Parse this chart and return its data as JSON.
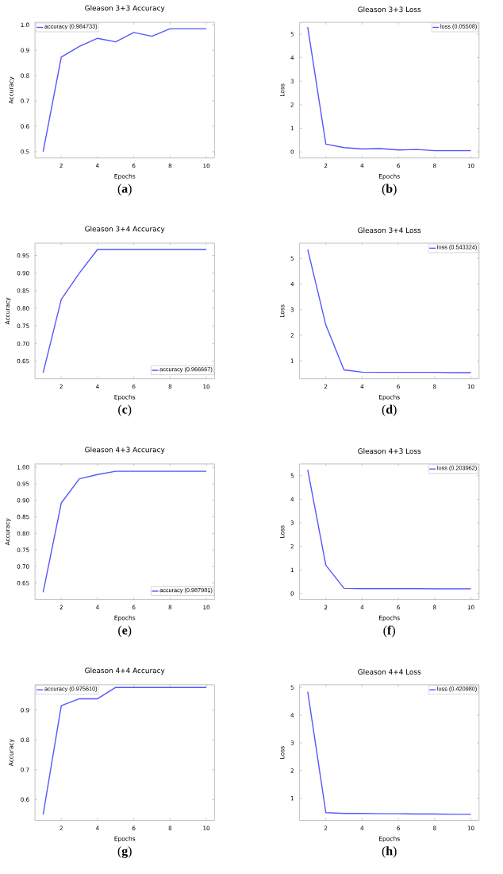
{
  "chart_data": [
    {
      "type": "line",
      "title": "Gleason 3+3 Accuracy",
      "xlabel": "Epochs",
      "ylabel": "Accuracy",
      "annotations": [
        "(**a**)"
      ],
      "x": [
        1,
        2,
        3,
        4,
        5,
        6,
        7,
        8,
        9,
        10
      ],
      "xlim": [
        0.55,
        10.45
      ],
      "xticks": [
        2,
        4,
        6,
        8,
        10
      ],
      "ylim": [
        0.475,
        1.01
      ],
      "yticks": [
        0.5,
        0.6,
        0.7,
        0.8,
        0.9,
        {
          "value": 1,
          "label": "1.0"
        }
      ],
      "legend": "top left",
      "line_style": "solid",
      "series": [
        {
          "name": "accuracy (0.984733)",
          "color": "#5555ff",
          "values": [
            0.5,
            0.873,
            0.915,
            0.947,
            0.933,
            0.97,
            0.955,
            0.985,
            0.985,
            0.985
          ]
        }
      ]
    },
    {
      "type": "line",
      "title": "Gleason 3+3 Loss",
      "xlabel": "Epochs",
      "ylabel": "Loss",
      "annotations": [
        "(**b**)"
      ],
      "x": [
        1,
        2,
        3,
        4,
        5,
        6,
        7,
        8,
        9,
        10
      ],
      "xlim": [
        0.55,
        10.45
      ],
      "xticks": [
        2,
        4,
        6,
        8,
        10
      ],
      "ylim": [
        -0.26,
        5.5
      ],
      "yticks": [
        0,
        1,
        2,
        3,
        4,
        5
      ],
      "legend": "top right",
      "line_style": "solid",
      "series": [
        {
          "name": "loss (0.05508)",
          "color": "#5555ff",
          "values": [
            5.3,
            0.33,
            0.18,
            0.12,
            0.14,
            0.08,
            0.1,
            0.05,
            0.05,
            0.05
          ]
        }
      ]
    },
    {
      "type": "line",
      "title": "Gleason 3+4 Accuracy",
      "xlabel": "Epochs",
      "ylabel": "Accuracy",
      "annotations": [
        "(**c**)"
      ],
      "x": [
        1,
        2,
        3,
        4,
        5,
        6,
        7,
        8,
        9,
        10
      ],
      "xlim": [
        0.55,
        10.45
      ],
      "xticks": [
        2,
        4,
        6,
        8,
        10
      ],
      "ylim": [
        0.6,
        0.985
      ],
      "yticks": [
        {
          "value": 0.65,
          "label": "0.65"
        },
        {
          "value": 0.7,
          "label": "0.70"
        },
        {
          "value": 0.75,
          "label": "0.75"
        },
        {
          "value": 0.8,
          "label": "0.80"
        },
        {
          "value": 0.85,
          "label": "0.85"
        },
        {
          "value": 0.9,
          "label": "0.90"
        },
        {
          "value": 0.95,
          "label": "0.95"
        }
      ],
      "legend": "bottom right",
      "line_style": "solid",
      "series": [
        {
          "name": "accuracy (0.966667)",
          "color": "#5555ff",
          "values": [
            0.617,
            0.825,
            0.9,
            0.967,
            0.967,
            0.967,
            0.967,
            0.967,
            0.967,
            0.967
          ]
        }
      ]
    },
    {
      "type": "line",
      "title": "Gleason 3+4 Loss",
      "xlabel": "Epochs",
      "ylabel": "Loss",
      "annotations": [
        "(**d**)"
      ],
      "x": [
        1,
        2,
        3,
        4,
        5,
        6,
        7,
        8,
        9,
        10
      ],
      "xlim": [
        0.55,
        10.45
      ],
      "xticks": [
        2,
        4,
        6,
        8,
        10
      ],
      "ylim": [
        0.3,
        5.6
      ],
      "yticks": [
        1,
        2,
        3,
        4,
        5
      ],
      "legend": "top right",
      "line_style": "solid",
      "series": [
        {
          "name": "loss (0.543324)",
          "color": "#5555ff",
          "values": [
            5.35,
            2.4,
            0.65,
            0.56,
            0.55,
            0.55,
            0.55,
            0.55,
            0.54,
            0.54
          ]
        }
      ]
    },
    {
      "type": "line",
      "title": "Gleason 4+3 Accuracy",
      "xlabel": "Epochs",
      "ylabel": "Accuracy",
      "annotations": [
        "(**e**)"
      ],
      "x": [
        1,
        2,
        3,
        4,
        5,
        6,
        7,
        8,
        9,
        10
      ],
      "xlim": [
        0.55,
        10.45
      ],
      "xticks": [
        2,
        4,
        6,
        8,
        10
      ],
      "ylim": [
        0.6,
        1.01
      ],
      "yticks": [
        {
          "value": 0.65,
          "label": "0.65"
        },
        {
          "value": 0.7,
          "label": "0.70"
        },
        {
          "value": 0.75,
          "label": "0.75"
        },
        {
          "value": 0.8,
          "label": "0.80"
        },
        {
          "value": 0.85,
          "label": "0.85"
        },
        {
          "value": 0.9,
          "label": "0.90"
        },
        {
          "value": 0.95,
          "label": "0.95"
        },
        {
          "value": 1,
          "label": "1.00"
        }
      ],
      "legend": "bottom right",
      "line_style": "solid",
      "series": [
        {
          "name": "accuracy (0.987981)",
          "color": "#5555ff",
          "values": [
            0.622,
            0.892,
            0.965,
            0.978,
            0.988,
            0.988,
            0.988,
            0.988,
            0.988,
            0.988
          ]
        }
      ]
    },
    {
      "type": "line",
      "title": "Gleason 4+3 Loss",
      "xlabel": "Epochs",
      "ylabel": "Loss",
      "annotations": [
        "(**f**)"
      ],
      "x": [
        1,
        2,
        3,
        4,
        5,
        6,
        7,
        8,
        9,
        10
      ],
      "xlim": [
        0.55,
        10.45
      ],
      "xticks": [
        2,
        4,
        6,
        8,
        10
      ],
      "ylim": [
        -0.26,
        5.5
      ],
      "yticks": [
        0,
        1,
        2,
        3,
        4,
        5
      ],
      "legend": "top right",
      "line_style": "solid",
      "series": [
        {
          "name": "loss (0.203962)",
          "color": "#5555ff",
          "values": [
            5.25,
            1.2,
            0.22,
            0.21,
            0.21,
            0.21,
            0.21,
            0.2,
            0.2,
            0.2
          ]
        }
      ]
    },
    {
      "type": "line",
      "title": "Gleason 4+4 Accuracy",
      "xlabel": "Epochs",
      "ylabel": "Accuracy",
      "annotations": [
        "(**g**)"
      ],
      "x": [
        1,
        2,
        3,
        4,
        5,
        6,
        7,
        8,
        9,
        10
      ],
      "xlim": [
        0.55,
        10.45
      ],
      "xticks": [
        2,
        4,
        6,
        8,
        10
      ],
      "ylim": [
        0.53,
        0.985
      ],
      "yticks": [
        0.6,
        0.7,
        0.8,
        0.9
      ],
      "legend": "top left",
      "line_style": "solid",
      "series": [
        {
          "name": "accuracy (0.975610)",
          "color": "#5555ff",
          "values": [
            0.55,
            0.915,
            0.938,
            0.938,
            0.976,
            0.976,
            0.976,
            0.976,
            0.976,
            0.976
          ]
        }
      ]
    },
    {
      "type": "line",
      "title": "Gleason 4+4 Loss",
      "xlabel": "Epochs",
      "ylabel": "Loss",
      "annotations": [
        "(**h**)"
      ],
      "x": [
        1,
        2,
        3,
        4,
        5,
        6,
        7,
        8,
        9,
        10
      ],
      "xlim": [
        0.55,
        10.45
      ],
      "xticks": [
        2,
        4,
        6,
        8,
        10
      ],
      "ylim": [
        0.2,
        5.1
      ],
      "yticks": [
        1,
        2,
        3,
        4,
        5
      ],
      "legend": "top right",
      "line_style": "solid",
      "series": [
        {
          "name": "loss (0.420980)",
          "color": "#5555ff",
          "values": [
            4.85,
            0.48,
            0.45,
            0.45,
            0.44,
            0.44,
            0.43,
            0.43,
            0.42,
            0.42
          ]
        }
      ]
    }
  ]
}
